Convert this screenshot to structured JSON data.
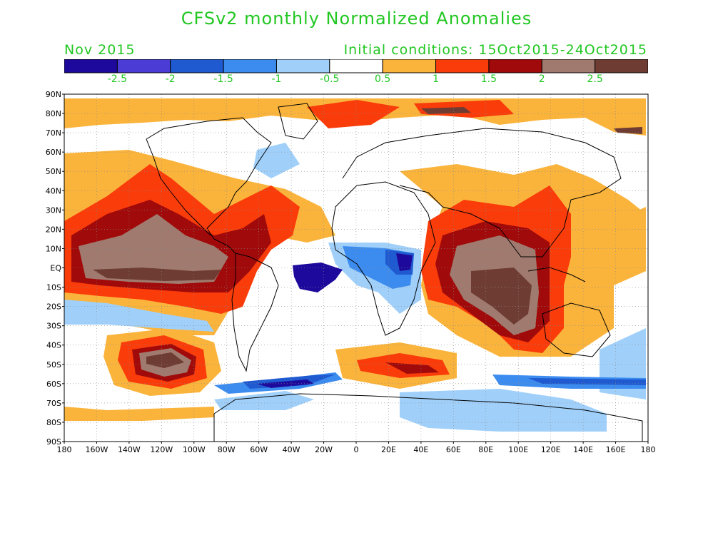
{
  "title": "CFSv2 monthly Normalized Anomalies",
  "month": "Nov 2015",
  "initial_conditions": "Initial conditions: 15Oct2015-24Oct2015",
  "colorbar": {
    "colors": [
      "#1d0a9c",
      "#4a3cd4",
      "#1f5ad0",
      "#3c8cf0",
      "#a0d0fa",
      "#ffffff",
      "#fab43c",
      "#fa3c0a",
      "#a00a0a",
      "#a07a6e",
      "#6e3c32"
    ],
    "labels": [
      "-2.5",
      "-2",
      "-1.5",
      "-1",
      "-0.5",
      "0.5",
      "1",
      "1.5",
      "2",
      "2.5"
    ]
  },
  "map": {
    "lat_labels": [
      "90N",
      "80N",
      "70N",
      "60N",
      "50N",
      "40N",
      "30N",
      "20N",
      "10N",
      "EQ",
      "10S",
      "20S",
      "30S",
      "40S",
      "50S",
      "60S",
      "70S",
      "80S",
      "90S"
    ],
    "lon_labels": [
      "180",
      "160W",
      "140W",
      "120W",
      "100W",
      "80W",
      "60W",
      "40W",
      "20W",
      "0",
      "20E",
      "40E",
      "60E",
      "80E",
      "100E",
      "120E",
      "140E",
      "160E",
      "180"
    ]
  }
}
